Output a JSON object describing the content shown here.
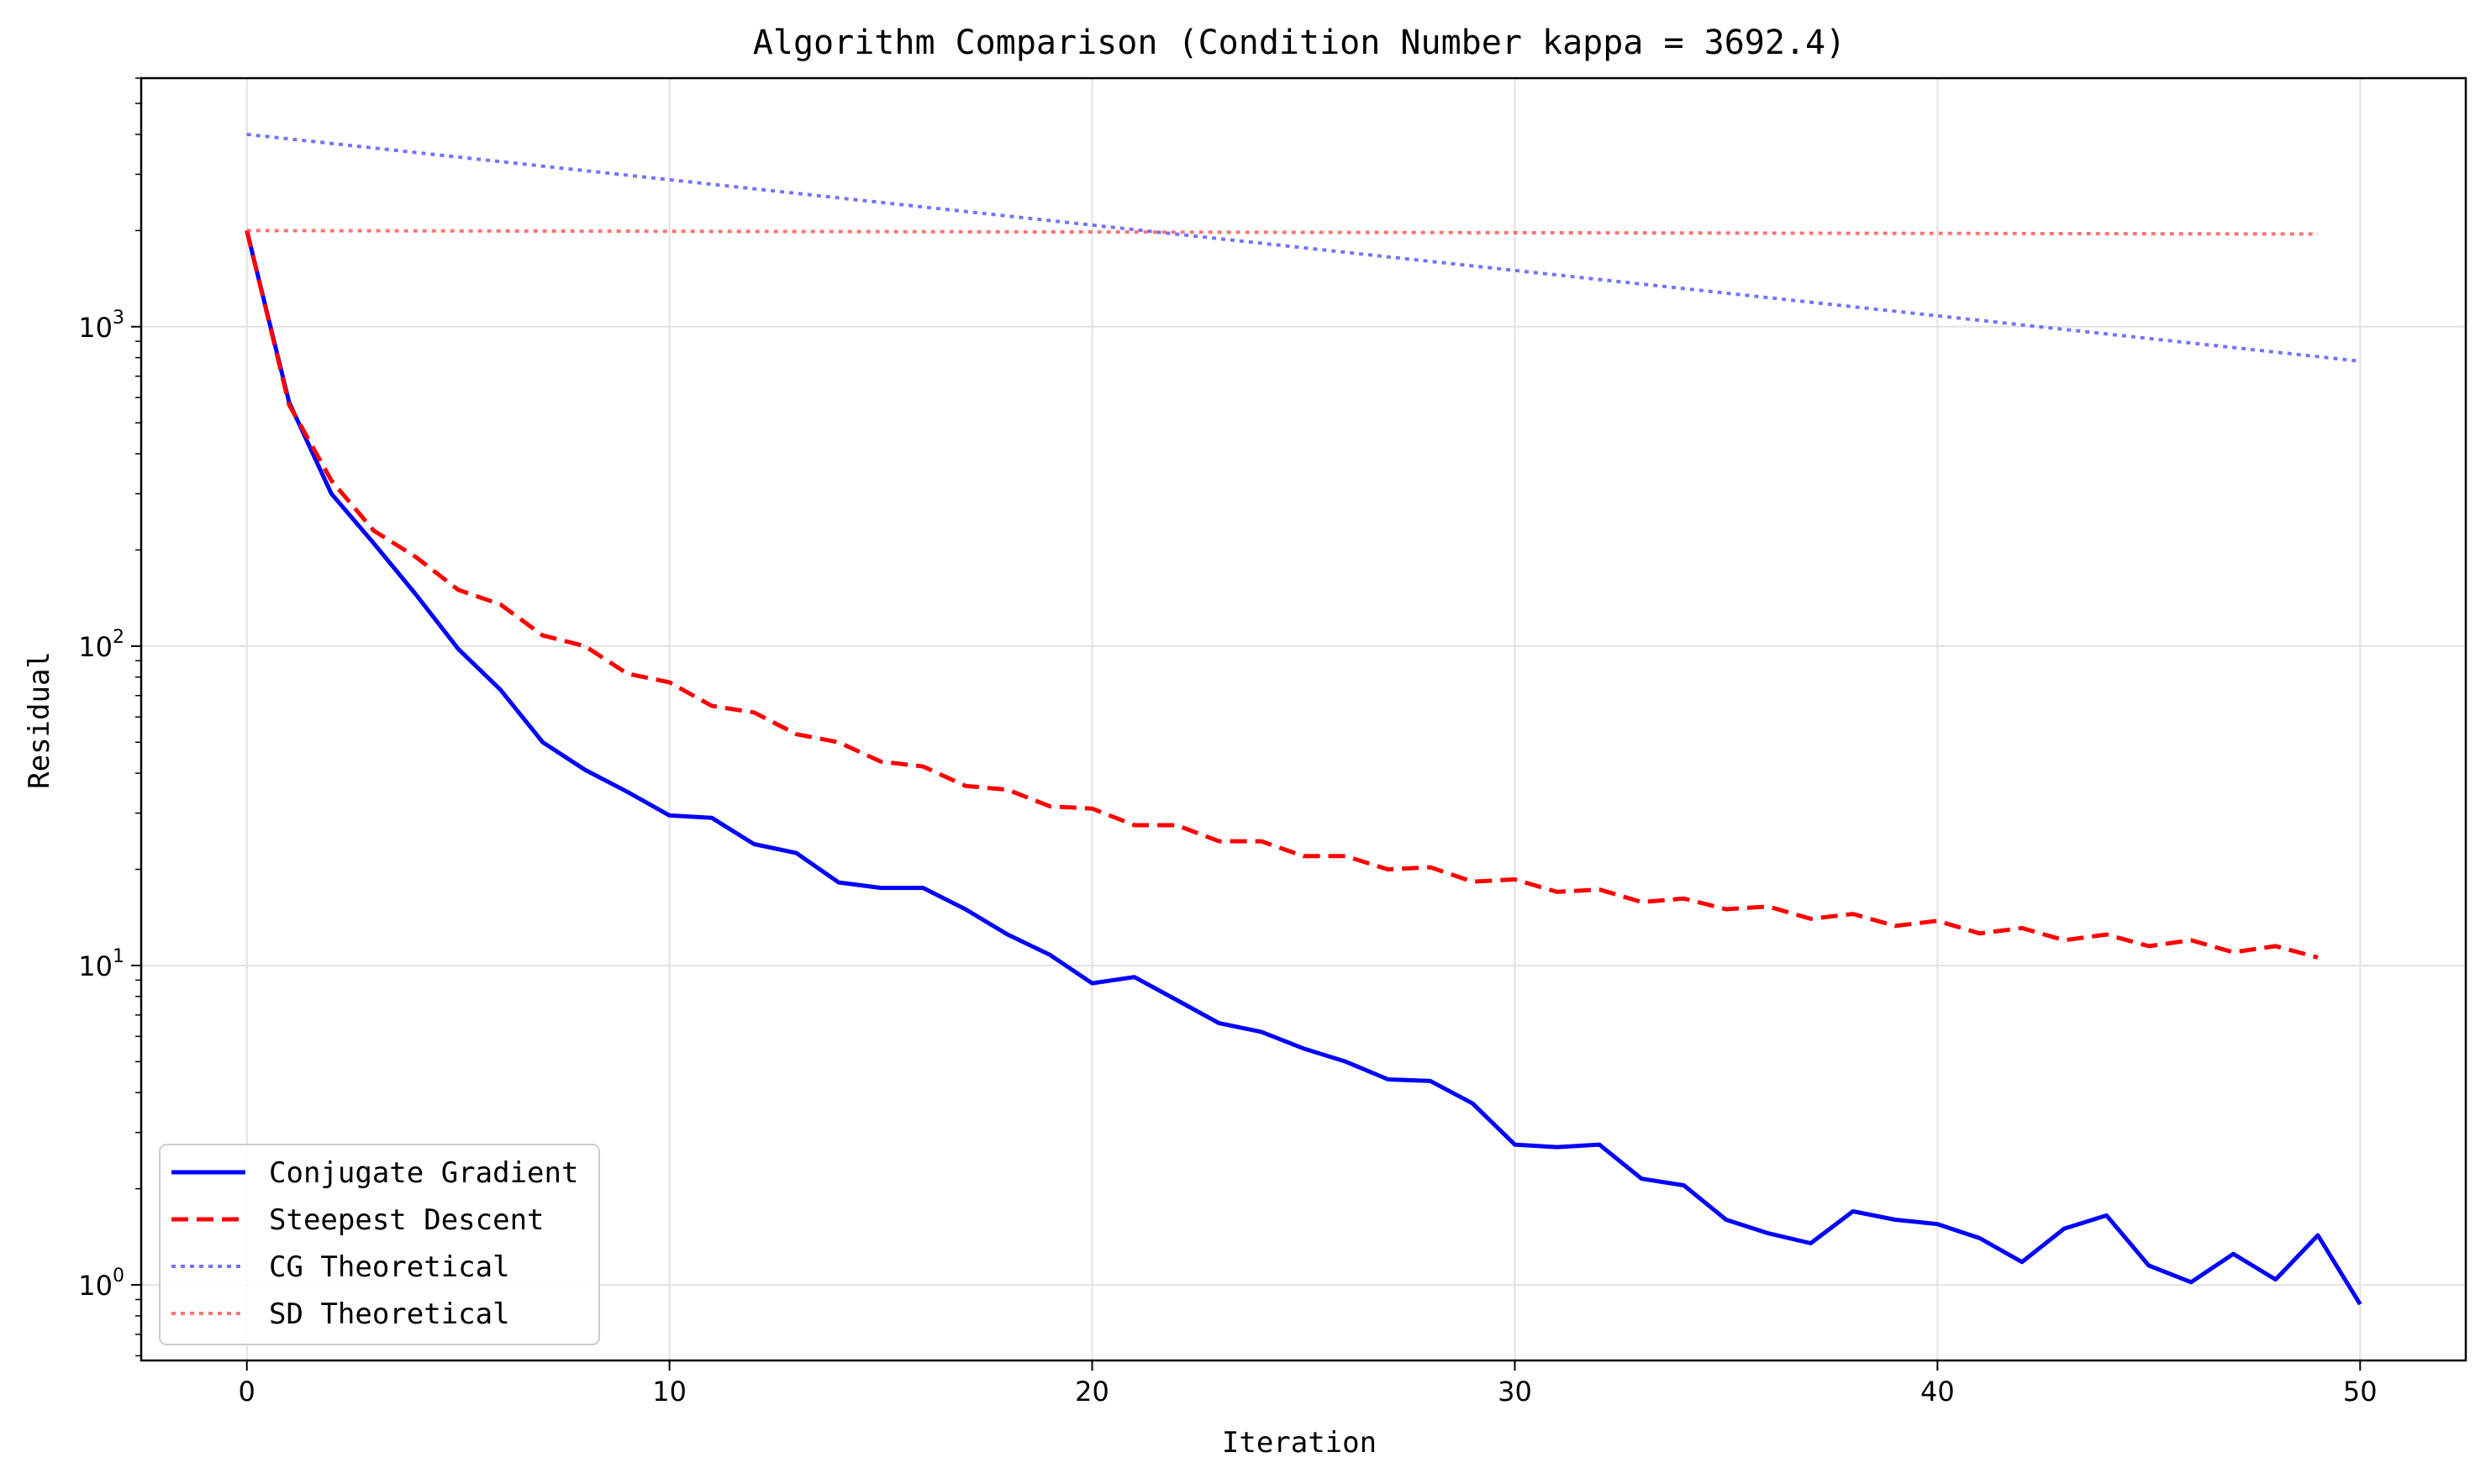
{
  "chart_data": {
    "type": "line",
    "title": "Algorithm Comparison (Condition Number kappa = 3692.4)",
    "xlabel": "Iteration",
    "ylabel": "Residual",
    "xlim": [
      -2.5,
      52.5
    ],
    "ylim": [
      0.58,
      6000
    ],
    "yscale": "log",
    "xticks": [
      0,
      10,
      20,
      30,
      40,
      50
    ],
    "xtick_labels": [
      "0",
      "10",
      "20",
      "30",
      "40",
      "50"
    ],
    "yticks": [
      1,
      10,
      100,
      1000
    ],
    "ytick_labels": [
      {
        "base": "10",
        "exp": "0"
      },
      {
        "base": "10",
        "exp": "1"
      },
      {
        "base": "10",
        "exp": "2"
      },
      {
        "base": "10",
        "exp": "3"
      }
    ],
    "grid": true,
    "legend_position": "lower-left",
    "series": [
      {
        "name": "Conjugate Gradient",
        "color": "#0000ff",
        "style": "solid",
        "x": [
          0,
          1,
          2,
          3,
          4,
          5,
          6,
          7,
          8,
          9,
          10,
          11,
          12,
          13,
          14,
          15,
          16,
          17,
          18,
          19,
          20,
          21,
          22,
          23,
          24,
          25,
          26,
          27,
          28,
          29,
          30,
          31,
          32,
          33,
          34,
          35,
          36,
          37,
          38,
          39,
          40,
          41,
          42,
          43,
          44,
          45,
          46,
          47,
          48,
          49,
          50
        ],
        "values": [
          2000,
          580,
          300,
          210,
          145,
          98,
          73,
          50,
          41,
          35,
          29.5,
          29,
          24,
          22.5,
          18.2,
          17.5,
          17.5,
          15,
          12.5,
          10.8,
          8.8,
          9.2,
          7.8,
          6.6,
          6.2,
          5.5,
          5.0,
          4.4,
          4.35,
          3.7,
          2.75,
          2.7,
          2.75,
          2.15,
          2.05,
          1.6,
          1.45,
          1.35,
          1.7,
          1.6,
          1.55,
          1.4,
          1.18,
          1.5,
          1.65,
          1.15,
          1.02,
          1.25,
          1.04,
          1.43,
          0.87
        ]
      },
      {
        "name": "Steepest Descent",
        "color": "#ff0000",
        "style": "dashed",
        "x": [
          0,
          1,
          2,
          3,
          4,
          5,
          6,
          7,
          8,
          9,
          10,
          11,
          12,
          13,
          14,
          15,
          16,
          17,
          18,
          19,
          20,
          21,
          22,
          23,
          24,
          25,
          26,
          27,
          28,
          29,
          30,
          31,
          32,
          33,
          34,
          35,
          36,
          37,
          38,
          39,
          40,
          41,
          42,
          43,
          44,
          45,
          46,
          47,
          48,
          49
        ],
        "values": [
          2000,
          570,
          330,
          230,
          190,
          150,
          135,
          108,
          100,
          82,
          77,
          65,
          62,
          53,
          50,
          43.5,
          42,
          36.5,
          35.5,
          31.5,
          31,
          27.5,
          27.5,
          24.5,
          24.5,
          22,
          22,
          20,
          20.3,
          18.3,
          18.6,
          17,
          17.3,
          15.8,
          16.2,
          15,
          15.3,
          14,
          14.5,
          13.3,
          13.8,
          12.6,
          13.1,
          12,
          12.5,
          11.5,
          12,
          11,
          11.5,
          10.6
        ]
      },
      {
        "name": "CG Theoretical",
        "color": "#4444ff",
        "style": "dotted",
        "x": [
          0,
          50
        ],
        "values": [
          4000,
          780
        ]
      },
      {
        "name": "SD Theoretical",
        "color": "#ff4444",
        "style": "dotted",
        "x": [
          0,
          49
        ],
        "values": [
          2000,
          1950
        ]
      }
    ]
  }
}
